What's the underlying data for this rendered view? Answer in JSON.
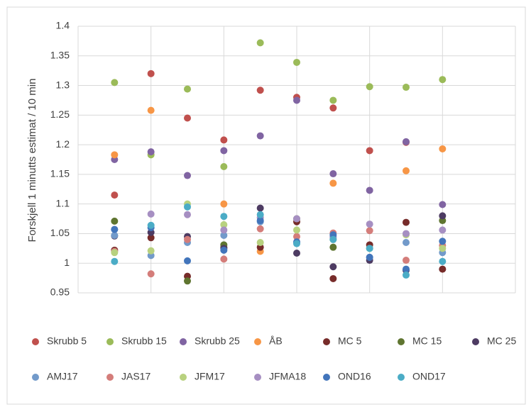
{
  "chart_data": {
    "type": "scatter",
    "ylabel": "Forskjell 1 minutts estimat / 10 min",
    "x": [
      1,
      2,
      3,
      4,
      5,
      6,
      7,
      8,
      9,
      10
    ],
    "xlim": [
      0,
      12
    ],
    "xticks": [
      0,
      2,
      4,
      6,
      8,
      10,
      12
    ],
    "ylim": [
      0.95,
      1.4
    ],
    "yticks": [
      0.95,
      1,
      1.05,
      1.1,
      1.15,
      1.2,
      1.25,
      1.3,
      1.35,
      1.4
    ],
    "grid": true,
    "legend": "bottom",
    "series": [
      {
        "name": "Skrubb 5",
        "color": "#c0504d",
        "values": [
          1.115,
          1.32,
          1.245,
          1.208,
          1.292,
          1.28,
          1.262,
          1.19,
          1.204,
          null
        ]
      },
      {
        "name": "Skrubb 15",
        "color": "#9bbb59",
        "values": [
          1.305,
          1.183,
          1.294,
          1.163,
          1.372,
          1.339,
          1.275,
          1.298,
          1.297,
          1.31
        ]
      },
      {
        "name": "Skrubb 25",
        "color": "#8064a2",
        "values": [
          1.175,
          1.188,
          1.148,
          1.19,
          1.215,
          1.275,
          1.151,
          1.123,
          1.205,
          1.099
        ]
      },
      {
        "name": "ÅB",
        "color": "#f79646",
        "values": [
          1.183,
          1.258,
          null,
          1.1,
          1.02,
          null,
          1.135,
          null,
          1.156,
          1.193
        ]
      },
      {
        "name": "MC 5",
        "color": "#772c2a",
        "values": [
          1.022,
          1.043,
          0.978,
          1.027,
          1.027,
          1.07,
          0.974,
          1.031,
          1.069,
          0.99
        ]
      },
      {
        "name": "MC 15",
        "color": "#5f7530",
        "values": [
          1.071,
          null,
          0.97,
          1.031,
          null,
          1.075,
          1.027,
          null,
          null,
          1.072
        ]
      },
      {
        "name": "MC 25",
        "color": "#4d3b62",
        "values": [
          1.046,
          1.052,
          1.045,
          1.025,
          1.093,
          1.017,
          0.994,
          1.005,
          0.988,
          1.08
        ]
      },
      {
        "name": "AMJ17",
        "color": "#729aca",
        "values": [
          1.047,
          1.013,
          1.035,
          1.047,
          1.07,
          1.035,
          1.045,
          1.01,
          1.035,
          1.018
        ]
      },
      {
        "name": "JAS17",
        "color": "#d47d7a",
        "values": [
          1.02,
          0.982,
          1.04,
          1.007,
          1.058,
          1.045,
          1.051,
          1.055,
          1.005,
          1.03
        ]
      },
      {
        "name": "JFM17",
        "color": "#b8d17f",
        "values": [
          1.018,
          1.021,
          1.1,
          1.065,
          1.035,
          1.056,
          1.04,
          1.025,
          1.048,
          1.025
        ]
      },
      {
        "name": "JFMA18",
        "color": "#a68fc2",
        "values": [
          1.057,
          1.083,
          1.082,
          1.056,
          1.077,
          1.075,
          1.043,
          1.066,
          1.05,
          1.056
        ]
      },
      {
        "name": "OND16",
        "color": "#4275bb",
        "values": [
          1.057,
          1.06,
          1.004,
          1.022,
          1.072,
          1.036,
          1.048,
          1.01,
          0.99,
          1.037
        ]
      },
      {
        "name": "OND17",
        "color": "#4bacc6",
        "values": [
          1.003,
          1.064,
          1.095,
          1.079,
          1.082,
          1.033,
          1.04,
          1.025,
          0.98,
          1.003
        ]
      }
    ]
  }
}
